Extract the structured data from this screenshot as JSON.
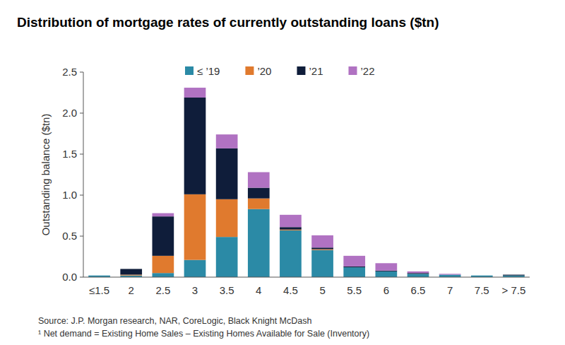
{
  "chart_data": {
    "type": "bar",
    "title": "Distribution of mortgage rates of currently outstanding loans ($tn)",
    "y_label": "Outstanding balance ($tn)",
    "notes": [
      "Source: J.P. Morgan research, NAR, CoreLogic, Black Knight McDash",
      "¹ Net demand = Existing Home Sales – Existing Homes Available for Sale (Inventory)"
    ],
    "categories": [
      "≤1.5",
      "2",
      "2.5",
      "3",
      "3.5",
      "4",
      "4.5",
      "5",
      "5.5",
      "6",
      "6.5",
      "7",
      "7.5",
      "> 7.5"
    ],
    "series": [
      {
        "name": "≤ ’19",
        "color": "#2b8aa6",
        "values": [
          0.02,
          0.02,
          0.05,
          0.21,
          0.49,
          0.83,
          0.57,
          0.33,
          0.12,
          0.07,
          0.04,
          0.03,
          0.02,
          0.02
        ]
      },
      {
        "name": "’20",
        "color": "#e07a2e",
        "values": [
          0,
          0.01,
          0.21,
          0.8,
          0.46,
          0.13,
          0.01,
          0.01,
          0,
          0,
          0,
          0,
          0,
          0
        ]
      },
      {
        "name": "’21",
        "color": "#0f1d3a",
        "values": [
          0,
          0.07,
          0.48,
          1.18,
          0.62,
          0.13,
          0.03,
          0.02,
          0.01,
          0.01,
          0.01,
          0,
          0,
          0.01
        ]
      },
      {
        "name": "’22",
        "color": "#b072c2",
        "values": [
          0,
          0,
          0.04,
          0.12,
          0.17,
          0.19,
          0.15,
          0.15,
          0.13,
          0.09,
          0.02,
          0.01,
          0,
          0
        ]
      }
    ],
    "stacked": true,
    "grid": false,
    "legend": "top",
    "ylim": [
      0,
      2.5
    ],
    "yticks": [
      {
        "value": 0,
        "label": "0.0"
      },
      0.5,
      {
        "value": 1,
        "label": "1.0"
      },
      1.5,
      {
        "value": 2,
        "label": "2.0"
      },
      2.5
    ]
  }
}
